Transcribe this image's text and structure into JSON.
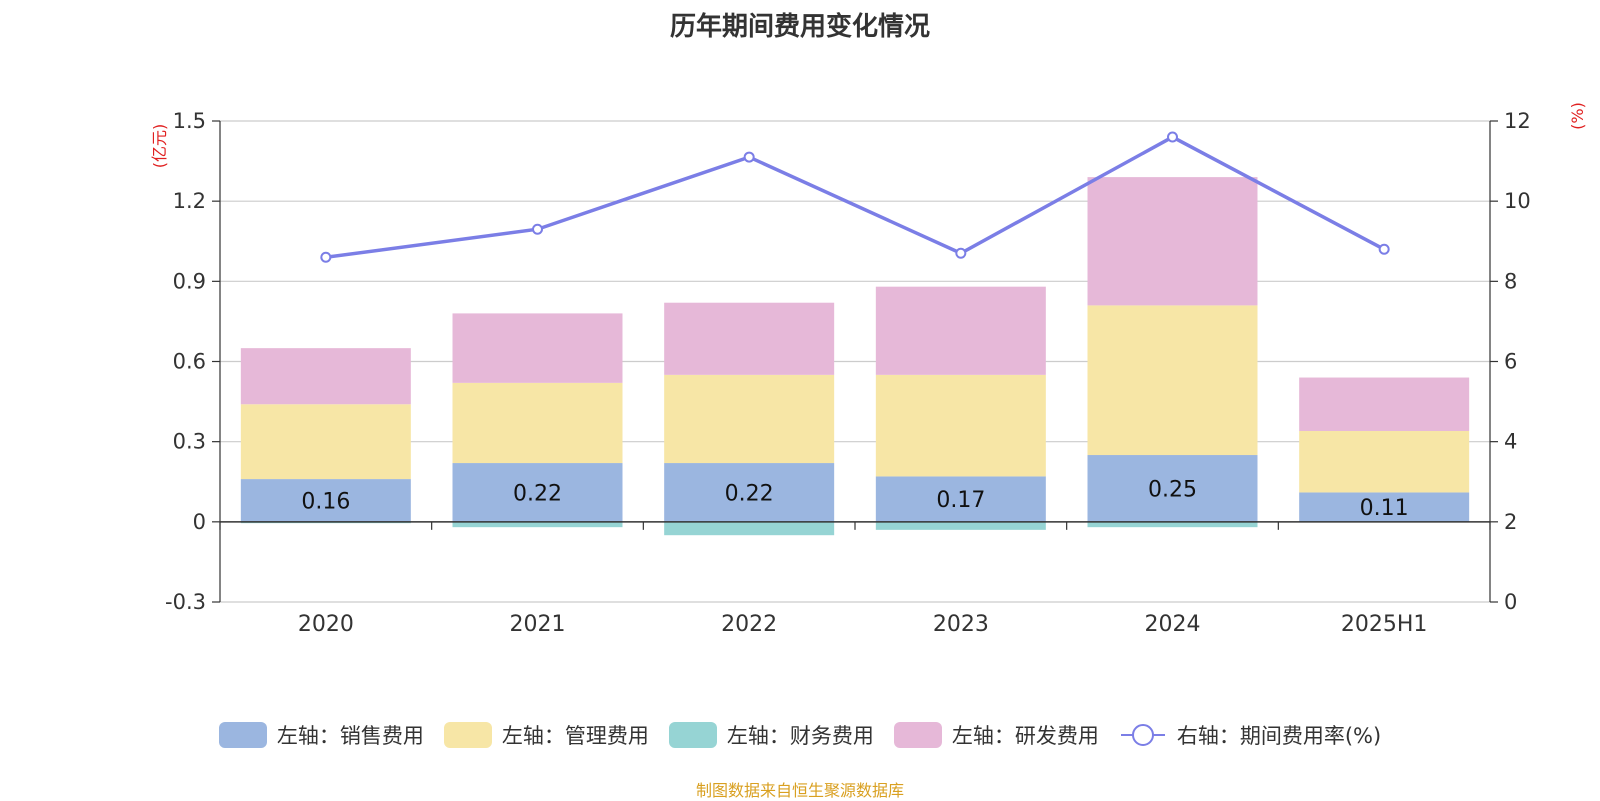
{
  "title": "历年期间费用变化情况",
  "source_note": "制图数据来自恒生聚源数据库",
  "legend": [
    {
      "label": "左轴：销售费用",
      "color": "#9bb6e0",
      "kind": "bar"
    },
    {
      "label": "左轴：管理费用",
      "color": "#f7e6a6",
      "kind": "bar"
    },
    {
      "label": "左轴：财务费用",
      "color": "#96d4d4",
      "kind": "bar"
    },
    {
      "label": "左轴：研发费用",
      "color": "#e6b8d8",
      "kind": "bar"
    },
    {
      "label": "右轴：期间费用率(%)",
      "color": "#7b7ee6",
      "kind": "line"
    }
  ],
  "chart_data": {
    "type": "bar",
    "stacked": true,
    "title": "历年期间费用变化情况",
    "categories": [
      "2020",
      "2021",
      "2022",
      "2023",
      "2024",
      "2025H1"
    ],
    "left_axis": {
      "unit_label": "(亿元)",
      "ylim": [
        -0.3,
        1.5
      ],
      "ticks": [
        "1.5",
        "1.2",
        "0.9",
        "0.6",
        "0.3",
        "0",
        "-0.3"
      ],
      "tick_values": [
        1.5,
        1.2,
        0.9,
        0.6,
        0.3,
        0,
        -0.3
      ]
    },
    "right_axis": {
      "unit_label": "(%)",
      "ylim": [
        0,
        12
      ],
      "ticks": [
        "12",
        "10",
        "8",
        "6",
        "4",
        "2",
        "0"
      ],
      "tick_values": [
        12,
        10,
        8,
        6,
        4,
        2,
        0
      ]
    },
    "grid": true,
    "legend_position": "bottom",
    "series": [
      {
        "name": "左轴：销售费用",
        "axis": "left",
        "color": "#9bb6e0",
        "values": [
          0.16,
          0.22,
          0.22,
          0.17,
          0.25,
          0.11
        ],
        "labels": [
          "0.16",
          "0.22",
          "0.22",
          "0.17",
          "0.25",
          "0.11"
        ]
      },
      {
        "name": "左轴：管理费用",
        "axis": "left",
        "color": "#f7e6a6",
        "values": [
          0.28,
          0.3,
          0.33,
          0.38,
          0.56,
          0.23
        ]
      },
      {
        "name": "左轴：财务费用",
        "axis": "left",
        "color": "#96d4d4",
        "values": [
          -0.005,
          -0.02,
          -0.05,
          -0.03,
          -0.02,
          0.0
        ]
      },
      {
        "name": "左轴：研发费用",
        "axis": "left",
        "color": "#e6b8d8",
        "values": [
          0.21,
          0.26,
          0.27,
          0.33,
          0.48,
          0.2
        ]
      },
      {
        "name": "右轴：期间费用率(%)",
        "axis": "right",
        "type": "line",
        "color": "#7b7ee6",
        "values": [
          8.6,
          9.3,
          11.1,
          8.7,
          11.6,
          8.8
        ]
      }
    ]
  }
}
